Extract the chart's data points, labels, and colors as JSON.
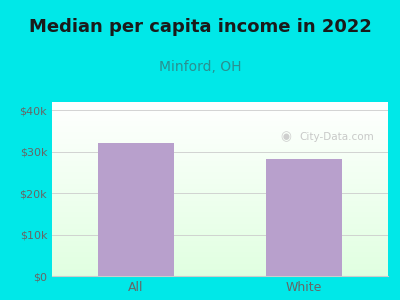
{
  "title": "Median per capita income in 2022",
  "subtitle": "Minford, OH",
  "categories": [
    "All",
    "White"
  ],
  "values": [
    32200,
    28200
  ],
  "bar_color": "#b8a0cc",
  "background_color": "#00e8e8",
  "title_fontsize": 13,
  "subtitle_fontsize": 10,
  "subtitle_color": "#2a9090",
  "tick_color": "#666666",
  "ylim": [
    0,
    42000
  ],
  "yticks": [
    0,
    10000,
    20000,
    30000,
    40000
  ],
  "ytick_labels": [
    "$0",
    "$10k",
    "$20k",
    "$30k",
    "$40k"
  ],
  "watermark_text": "City-Data.com",
  "watermark_color": "#c0c0c0",
  "grid_color": "#cccccc"
}
